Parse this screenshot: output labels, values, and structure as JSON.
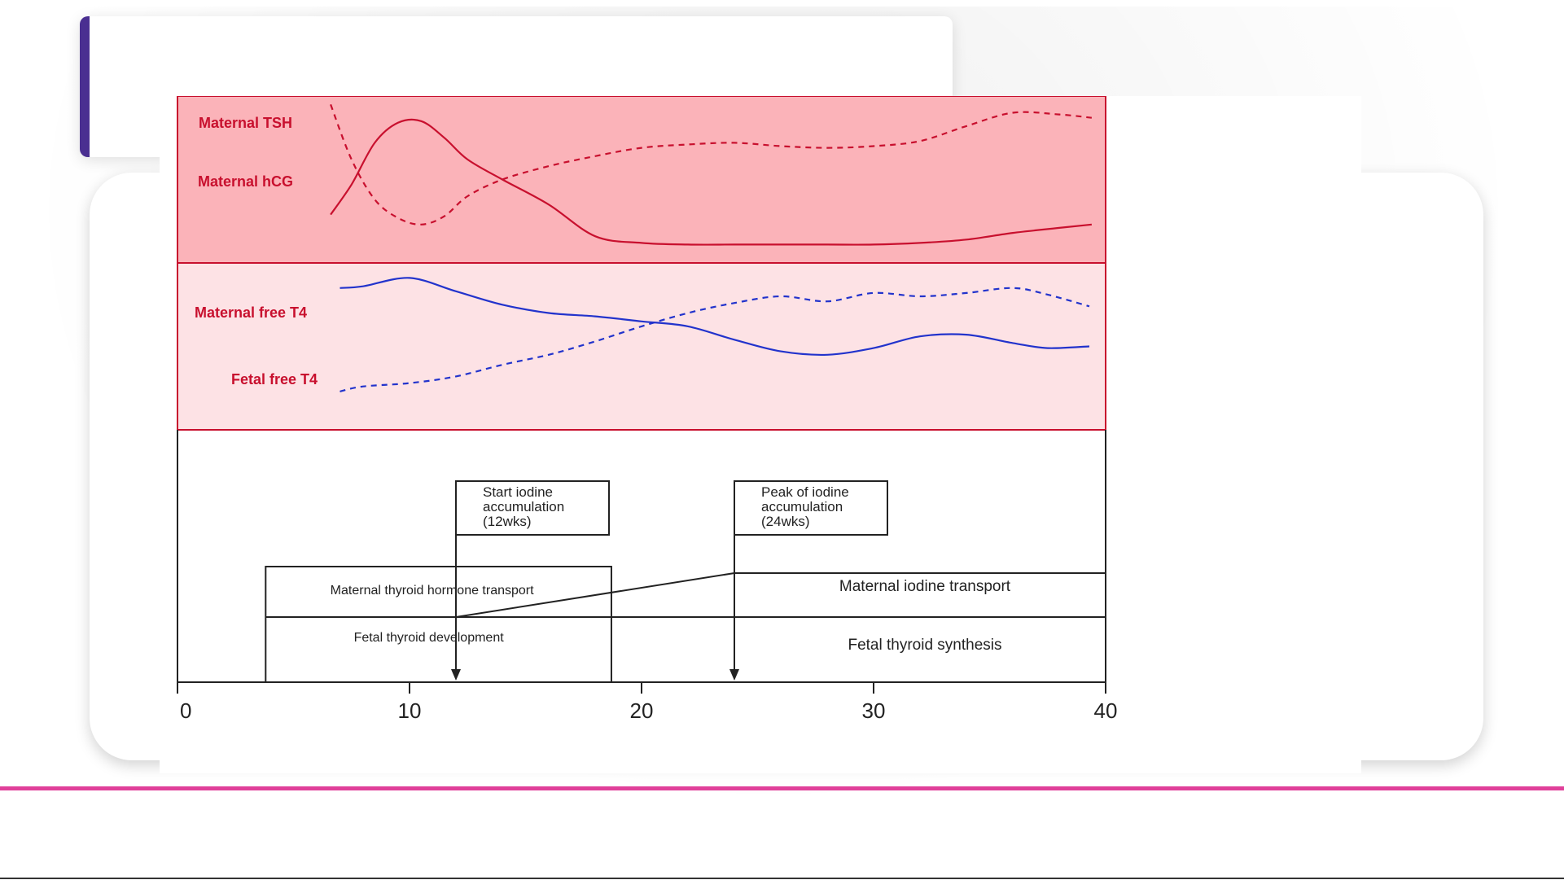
{
  "colors": {
    "accent_bar": "#4a2f91",
    "accent_line": "#e0409a",
    "panel_top": "#fbb3b9",
    "panel_mid": "#fde2e5",
    "panel_border": "#c8102e",
    "series_red": "#c8102e",
    "series_blue": "#2233cc"
  },
  "chart_data": {
    "type": "line",
    "xlabel": "",
    "ylabel": "",
    "xlim": [
      0,
      40
    ],
    "x_ticks": [
      "0",
      "10",
      "20",
      "30",
      "40"
    ],
    "panels": [
      {
        "name": "top",
        "series": [
          {
            "name": "Maternal TSH",
            "style": "dashed",
            "color": "#c8102e",
            "x": [
              6.6,
              7.5,
              8.5,
              9.5,
              10.5,
              11.5,
              12.5,
              14,
              16,
              18,
              20,
              22,
              24,
              26,
              28,
              30,
              32,
              34,
              36,
              38,
              39.4
            ],
            "y": [
              0.95,
              0.62,
              0.38,
              0.27,
              0.23,
              0.28,
              0.4,
              0.5,
              0.58,
              0.64,
              0.69,
              0.71,
              0.72,
              0.7,
              0.69,
              0.7,
              0.73,
              0.82,
              0.9,
              0.89,
              0.87
            ]
          },
          {
            "name": "Maternal hCG",
            "style": "solid",
            "color": "#c8102e",
            "x": [
              6.6,
              7.5,
              8.5,
              9.5,
              10.5,
              11.5,
              12.5,
              14,
              16,
              18,
              20,
              22,
              24,
              26,
              28,
              30,
              32,
              34,
              36,
              38,
              39.4
            ],
            "y": [
              0.29,
              0.47,
              0.72,
              0.84,
              0.85,
              0.75,
              0.62,
              0.5,
              0.35,
              0.16,
              0.12,
              0.11,
              0.11,
              0.11,
              0.11,
              0.11,
              0.12,
              0.14,
              0.18,
              0.21,
              0.23
            ]
          }
        ]
      },
      {
        "name": "middle",
        "series": [
          {
            "name": "Maternal free T4",
            "style": "solid",
            "color": "#2233cc",
            "x": [
              7,
              8,
              10,
              12,
              14,
              16,
              18,
              20,
              22,
              24,
              26,
              28,
              30,
              32,
              34,
              36,
              37.5,
              39.3
            ],
            "y": [
              0.85,
              0.86,
              0.91,
              0.83,
              0.75,
              0.7,
              0.68,
              0.65,
              0.62,
              0.54,
              0.47,
              0.45,
              0.49,
              0.56,
              0.57,
              0.52,
              0.49,
              0.5
            ]
          },
          {
            "name": "Fetal free T4",
            "style": "dashed",
            "color": "#2233cc",
            "x": [
              7,
              8,
              10,
              12,
              14,
              16,
              18,
              20,
              22,
              24,
              26,
              28,
              30,
              32,
              34,
              36,
              37.5,
              39.3
            ],
            "y": [
              0.23,
              0.26,
              0.28,
              0.32,
              0.39,
              0.45,
              0.53,
              0.62,
              0.7,
              0.76,
              0.8,
              0.77,
              0.82,
              0.8,
              0.82,
              0.85,
              0.81,
              0.74
            ]
          }
        ]
      }
    ],
    "timeline": {
      "boxes": [
        {
          "label": "Maternal thyroid hormone transport",
          "x_start": 3.8,
          "x_end": 18.7,
          "row": "upper"
        },
        {
          "label": "Fetal thyroid development",
          "x_start": 3.8,
          "x_end": 18.7,
          "row": "lower"
        },
        {
          "label": "Maternal iodine transport",
          "x_start": 24,
          "x_end": 40,
          "row": "upper"
        },
        {
          "label": "Fetal thyroid synthesis",
          "x_start": 24,
          "x_end": 40,
          "row": "lower"
        }
      ],
      "callouts": [
        {
          "lines": [
            "Start iodine",
            "accumulation",
            "(12wks)"
          ],
          "week": 12
        },
        {
          "lines": [
            "Peak of iodine",
            "accumulation",
            "(24wks)"
          ],
          "week": 24
        }
      ]
    }
  }
}
